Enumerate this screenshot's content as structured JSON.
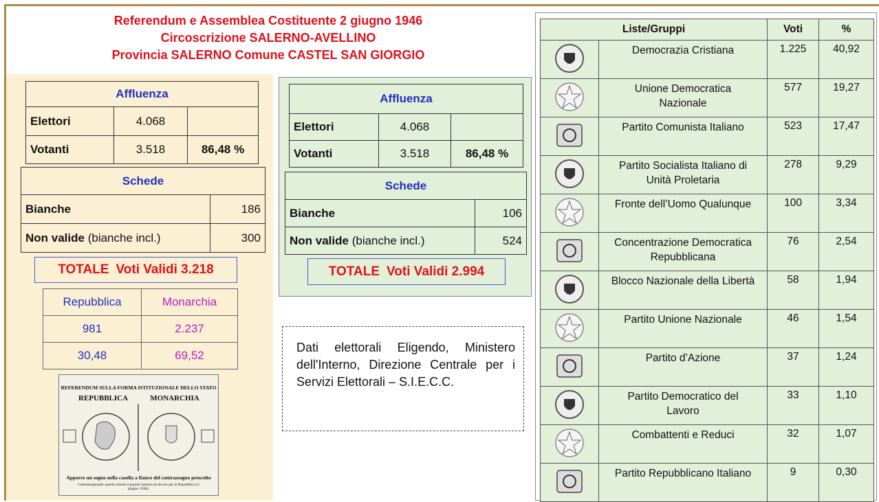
{
  "title": {
    "lines": [
      "Referendum e Assemblea Costituente 2 giugno 1946",
      "Circoscrizione SALERNO-AVELLINO",
      "Provincia SALERNO Comune CASTEL SAN GIORGIO"
    ]
  },
  "left_panel": {
    "affluenza": {
      "title": "Affluenza",
      "elettori": {
        "label": "Elettori",
        "value": "4.068"
      },
      "votanti": {
        "label": "Votanti",
        "value": "3.518",
        "percent": "86,48 %"
      }
    },
    "schede": {
      "title": "Schede",
      "bianche": {
        "label": "Bianche",
        "value": "186"
      },
      "non_valide": {
        "label": "Non valide",
        "note": "(bianche incl.)",
        "value": "300"
      }
    },
    "totale": {
      "label": "TOTALE",
      "text": "Voti Validi 3.218"
    },
    "referendum": {
      "headers": [
        "Repubblica",
        "Monarchia"
      ],
      "rows": [
        [
          "981",
          "2.237"
        ],
        [
          "30,48",
          "69,52"
        ]
      ]
    },
    "ballot": {
      "heading": "REFERENDUM SULLA FORMA ISTITUZIONALE DELLO STATO",
      "left": "REPUBBLICA",
      "right": "MONARCHIA",
      "instruction": "Apporre un segno nella casella a fianco del contrassegno prescelto",
      "caption": "Contrassegnando questa scheda il popolo italiano ha deciso per la Repubblica (2 giugno 1946)."
    }
  },
  "middle_panel": {
    "affluenza": {
      "title": "Affluenza",
      "elettori": {
        "label": "Elettori",
        "value": "4.068"
      },
      "votanti": {
        "label": "Votanti",
        "value": "3.518",
        "percent": "86,48 %"
      }
    },
    "schede": {
      "title": "Schede",
      "bianche": {
        "label": "Bianche",
        "value": "106"
      },
      "non_valide": {
        "label": "Non valide",
        "note": "(bianche incl.)",
        "value": "524"
      }
    },
    "totale": {
      "label": "TOTALE",
      "text": "Voti Validi 2.994"
    }
  },
  "source_note": "Dati elettorali Eligendo, Ministero dell'Interno, Direzione Centrale per i Servizi Elettorali – S.I.E.C.C.",
  "results": {
    "headers": {
      "lists": "Liste/Gruppi",
      "votes": "Voti",
      "percent": "%"
    },
    "rows": [
      {
        "name": "Democrazia Cristiana",
        "votes": "1.225",
        "percent": "40,92"
      },
      {
        "name": "Unione Democratica Nazionale",
        "votes": "577",
        "percent": "19,27"
      },
      {
        "name": "Partito Comunista Italiano",
        "votes": "523",
        "percent": "17,47"
      },
      {
        "name": "Partito Socialista Italiano di Unità Proletaria",
        "votes": "278",
        "percent": "9,29"
      },
      {
        "name": "Fronte dell’Uomo Qualunque",
        "votes": "100",
        "percent": "3,34"
      },
      {
        "name": "Concentrazione Democratica Repubblicana",
        "votes": "76",
        "percent": "2,54"
      },
      {
        "name": "Blocco Nazionale della Libertà",
        "votes": "58",
        "percent": "1,94"
      },
      {
        "name": "Partito Unione Nazionale",
        "votes": "46",
        "percent": "1,54"
      },
      {
        "name": "Partito d’Azione",
        "votes": "37",
        "percent": "1,24"
      },
      {
        "name": "Partito Democratico del Lavoro",
        "votes": "33",
        "percent": "1,10"
      },
      {
        "name": "Combattenti e Reduci",
        "votes": "32",
        "percent": "1,07"
      },
      {
        "name": "Partito Repubblicano Italiano",
        "votes": "9",
        "percent": "0,30"
      }
    ]
  }
}
